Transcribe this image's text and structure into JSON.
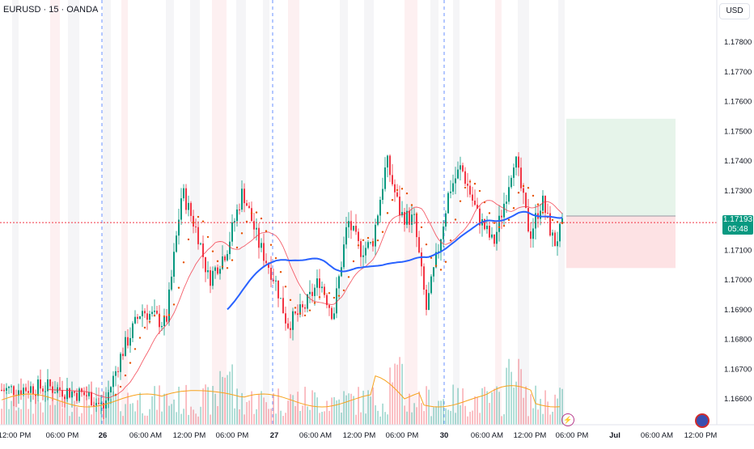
{
  "header": {
    "title": "EURUSD · 15 · OANDA"
  },
  "price_scale": {
    "currency": "USD",
    "ticks": [
      "1.17800",
      "1.17700",
      "1.17600",
      "1.17500",
      "1.17400",
      "1.17300",
      "1.17100",
      "1.17000",
      "1.16900",
      "1.16800",
      "1.16700",
      "1.16600"
    ],
    "tick_values": [
      1.178,
      1.177,
      1.176,
      1.175,
      1.174,
      1.173,
      1.171,
      1.17,
      1.169,
      1.168,
      1.167,
      1.166
    ],
    "last_price": "1.17193",
    "countdown": "05:48",
    "last_price_value": 1.17193
  },
  "time_axis": {
    "labels": [
      "12:00 PM",
      "06:00 PM",
      "26",
      "06:00 AM",
      "12:00 PM",
      "06:00 PM",
      "27",
      "06:00 AM",
      "12:00 PM",
      "06:00 PM",
      "30",
      "06:00 AM",
      "12:00 PM",
      "06:00 PM",
      "Jul",
      "06:00 AM",
      "12:00 PM"
    ]
  },
  "position_tool": {
    "entry": 1.17215,
    "target": 1.17542,
    "stop": 1.1704,
    "profit_color": "#e6f4ea",
    "loss_color": "#fde2e4"
  },
  "colors": {
    "up": "#089981",
    "down": "#f23645",
    "ma_blue": "#2962ff",
    "ma_red": "#f23645",
    "ma_dotted": "#e65100",
    "volume_ma": "#f7a21b",
    "session_line": "#2962ff"
  },
  "icons": {
    "lightning": "lightning-icon",
    "calendar_event": "event-icon"
  }
}
